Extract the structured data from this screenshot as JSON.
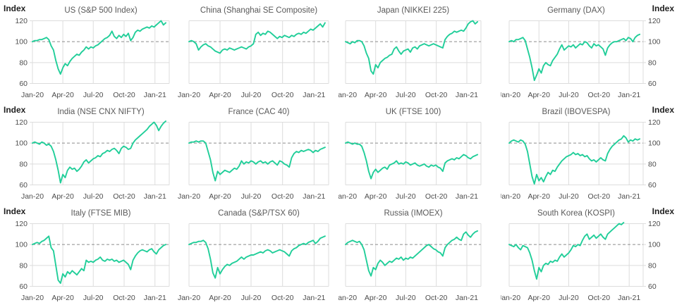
{
  "axis": {
    "y_label": "Index",
    "y_ticks": [
      120,
      100,
      80,
      60
    ],
    "ylim": [
      57,
      123
    ],
    "baseline_value": 100,
    "x_tick_labels": [
      "Jan-20",
      "Apr-20",
      "Jul-20",
      "Oct-20",
      "Jan-21"
    ],
    "x_tick_weeks": [
      0,
      13,
      26,
      39.2,
      52.4
    ],
    "x_domain_weeks": [
      0,
      58.5
    ]
  },
  "colors": {
    "line": "#21CE99",
    "grid": "#dcdcdc",
    "baseline": "#8c8c8c",
    "title": "#595959",
    "tick": "#4d4d4d",
    "axis_label": "#1f1f1f",
    "background": "#ffffff"
  },
  "chart_data": [
    {
      "type": "line",
      "id": "us-sp500",
      "title": "US (S&P 500 Index)",
      "y_axis": "left",
      "values": [
        100,
        101,
        101,
        102,
        102,
        103,
        104,
        102,
        96,
        92,
        82,
        74,
        69,
        75,
        79,
        77,
        81,
        84,
        86,
        88,
        87,
        90,
        92,
        95,
        93,
        95,
        94,
        96,
        97,
        99,
        101,
        103,
        104,
        106,
        110,
        105,
        103,
        106,
        104,
        107,
        105,
        108,
        101,
        104,
        109,
        111,
        110,
        112,
        113,
        114,
        113,
        115,
        114,
        116,
        118,
        120,
        116,
        118
      ]
    },
    {
      "type": "line",
      "id": "china-shanghai",
      "title": "China (Shanghai SE Composite)",
      "y_axis": "none",
      "values": [
        100,
        101,
        100,
        98,
        92,
        95,
        97,
        98,
        96,
        95,
        93,
        91,
        90,
        89,
        92,
        93,
        92,
        94,
        93,
        92,
        93,
        94,
        95,
        94,
        93,
        95,
        96,
        98,
        107,
        109,
        106,
        108,
        107,
        110,
        109,
        107,
        105,
        103,
        105,
        104,
        106,
        105,
        104,
        106,
        105,
        107,
        108,
        107,
        109,
        108,
        110,
        112,
        111,
        113,
        115,
        117,
        114,
        118
      ]
    },
    {
      "type": "line",
      "id": "japan-nikkei",
      "title": "Japan (NIKKEI 225)",
      "y_axis": "none",
      "values": [
        100,
        99,
        98,
        100,
        99,
        101,
        101,
        100,
        96,
        89,
        84,
        72,
        69,
        78,
        75,
        80,
        82,
        84,
        85,
        87,
        88,
        93,
        95,
        91,
        88,
        91,
        92,
        93,
        90,
        94,
        95,
        93,
        96,
        97,
        98,
        97,
        96,
        97,
        98,
        97,
        96,
        95,
        94,
        102,
        105,
        107,
        108,
        110,
        109,
        110,
        111,
        110,
        113,
        117,
        119,
        120,
        117,
        119
      ]
    },
    {
      "type": "line",
      "id": "germany-dax",
      "title": "Germany (DAX)",
      "y_axis": "right",
      "values": [
        100,
        101,
        100,
        102,
        102,
        103,
        104,
        101,
        93,
        85,
        75,
        63,
        68,
        74,
        70,
        77,
        80,
        78,
        77,
        82,
        85,
        88,
        93,
        97,
        92,
        94,
        96,
        95,
        97,
        94,
        96,
        98,
        97,
        100,
        99,
        96,
        94,
        98,
        96,
        97,
        95,
        93,
        87,
        94,
        97,
        99,
        100,
        100,
        101,
        102,
        103,
        101,
        104,
        103,
        100,
        104,
        106,
        107
      ]
    },
    {
      "type": "line",
      "id": "india-nifty",
      "title": "India (NSE CNX NIFTY)",
      "y_axis": "left",
      "values": [
        100,
        101,
        100,
        99,
        101,
        100,
        98,
        99,
        97,
        92,
        84,
        74,
        62,
        70,
        67,
        74,
        77,
        75,
        76,
        73,
        75,
        78,
        82,
        84,
        81,
        83,
        85,
        86,
        88,
        87,
        90,
        91,
        93,
        92,
        94,
        95,
        93,
        90,
        95,
        97,
        96,
        94,
        95,
        100,
        103,
        105,
        107,
        109,
        111,
        113,
        116,
        118,
        120,
        117,
        112,
        116,
        119,
        121
      ]
    },
    {
      "type": "line",
      "id": "france-cac40",
      "title": "France (CAC 40)",
      "y_axis": "none",
      "values": [
        100,
        101,
        101,
        102,
        101,
        102,
        102,
        100,
        92,
        84,
        72,
        64,
        73,
        70,
        72,
        74,
        73,
        72,
        74,
        76,
        75,
        78,
        83,
        80,
        82,
        81,
        83,
        82,
        80,
        82,
        83,
        81,
        82,
        80,
        82,
        83,
        81,
        79,
        83,
        82,
        80,
        79,
        77,
        86,
        90,
        92,
        91,
        93,
        92,
        93,
        94,
        93,
        91,
        93,
        92,
        94,
        95,
        96
      ]
    },
    {
      "type": "line",
      "id": "uk-ftse100",
      "title": "UK (FTSE 100)",
      "y_axis": "none",
      "values": [
        100,
        101,
        100,
        99,
        100,
        99,
        99,
        97,
        91,
        83,
        73,
        66,
        72,
        75,
        72,
        74,
        76,
        77,
        75,
        79,
        80,
        81,
        83,
        80,
        81,
        80,
        82,
        81,
        79,
        80,
        81,
        79,
        78,
        79,
        80,
        78,
        77,
        79,
        78,
        79,
        77,
        76,
        73,
        81,
        83,
        84,
        85,
        84,
        86,
        85,
        87,
        89,
        88,
        86,
        85,
        87,
        88,
        89
      ]
    },
    {
      "type": "line",
      "id": "brazil-ibovespa",
      "title": "Brazil (IBOVESPA)",
      "y_axis": "right",
      "values": [
        100,
        102,
        103,
        102,
        101,
        103,
        102,
        99,
        92,
        80,
        68,
        61,
        70,
        64,
        67,
        63,
        68,
        72,
        70,
        74,
        73,
        77,
        80,
        83,
        85,
        87,
        88,
        89,
        91,
        89,
        90,
        88,
        89,
        87,
        88,
        85,
        83,
        84,
        82,
        84,
        86,
        84,
        83,
        90,
        94,
        97,
        99,
        101,
        103,
        104,
        107,
        105,
        101,
        103,
        102,
        104,
        103,
        104
      ]
    },
    {
      "type": "line",
      "id": "italy-ftsemib",
      "title": "Italy (FTSE MIB)",
      "y_axis": "left",
      "values": [
        100,
        101,
        102,
        101,
        103,
        104,
        106,
        108,
        97,
        94,
        80,
        66,
        63,
        72,
        69,
        74,
        72,
        75,
        73,
        71,
        74,
        77,
        75,
        85,
        83,
        84,
        83,
        85,
        86,
        88,
        85,
        84,
        86,
        85,
        86,
        84,
        85,
        83,
        84,
        85,
        83,
        81,
        76,
        85,
        89,
        92,
        94,
        95,
        94,
        93,
        95,
        96,
        93,
        91,
        95,
        97,
        99,
        100
      ]
    },
    {
      "type": "line",
      "id": "canada-tsx60",
      "title": "Canada (S&P/TSX 60)",
      "y_axis": "none",
      "values": [
        100,
        101,
        102,
        102,
        103,
        103,
        104,
        102,
        96,
        86,
        73,
        68,
        78,
        72,
        76,
        79,
        81,
        80,
        82,
        83,
        84,
        86,
        88,
        86,
        88,
        89,
        90,
        90,
        91,
        92,
        93,
        92,
        94,
        95,
        94,
        92,
        93,
        94,
        95,
        94,
        93,
        91,
        89,
        94,
        96,
        97,
        99,
        100,
        101,
        100,
        102,
        103,
        104,
        101,
        103,
        106,
        107,
        108
      ]
    },
    {
      "type": "line",
      "id": "russia-imoex",
      "title": "Russia (IMOEX)",
      "y_axis": "none",
      "values": [
        100,
        102,
        103,
        104,
        103,
        102,
        103,
        100,
        95,
        85,
        75,
        70,
        78,
        76,
        82,
        85,
        83,
        80,
        82,
        84,
        83,
        85,
        87,
        86,
        88,
        85,
        87,
        86,
        88,
        87,
        89,
        91,
        93,
        95,
        97,
        99,
        100,
        98,
        96,
        95,
        93,
        92,
        89,
        97,
        100,
        102,
        104,
        105,
        107,
        105,
        104,
        110,
        112,
        109,
        107,
        110,
        112,
        113
      ]
    },
    {
      "type": "line",
      "id": "southkorea-kospi",
      "title": "South Korea (KOSPI)",
      "y_axis": "right",
      "values": [
        100,
        99,
        98,
        100,
        97,
        95,
        99,
        98,
        97,
        92,
        85,
        75,
        67,
        78,
        74,
        80,
        82,
        81,
        84,
        83,
        85,
        84,
        88,
        91,
        88,
        90,
        92,
        95,
        99,
        98,
        100,
        99,
        104,
        108,
        110,
        105,
        107,
        109,
        106,
        108,
        110,
        107,
        105,
        110,
        112,
        114,
        116,
        118,
        120,
        119,
        121
      ]
    }
  ]
}
